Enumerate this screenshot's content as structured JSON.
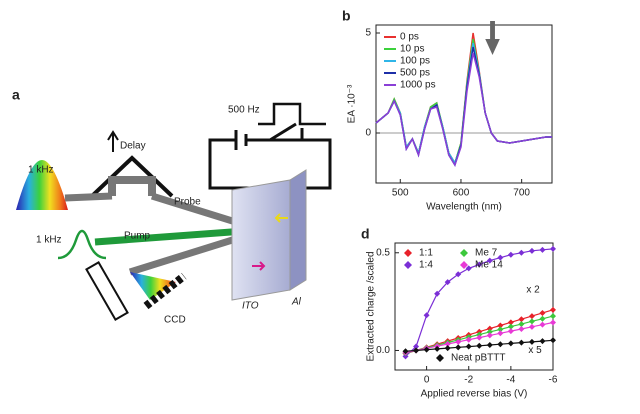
{
  "diagram": {
    "label": "a",
    "labels": [
      "500 Hz",
      "Delay",
      "1 kHz",
      "Probe",
      "1 kHz",
      "Pump",
      "CCD",
      "ITO",
      "Al"
    ]
  },
  "chart_data": [
    {
      "type": "line",
      "label": "b",
      "xlabel": "Wavelength (nm)",
      "ylabel": "EA ·10⁻³",
      "x": [
        460,
        480,
        490,
        500,
        510,
        520,
        530,
        540,
        550,
        560,
        570,
        580,
        590,
        600,
        610,
        620,
        630,
        640,
        650,
        660,
        680,
        700,
        720,
        740,
        750
      ],
      "series": [
        {
          "name": "0 ps",
          "color": "#e8312f",
          "values": [
            0.5,
            1.0,
            1.7,
            1.0,
            -0.7,
            -0.3,
            -1.0,
            0.3,
            1.3,
            1.5,
            0.3,
            -1.0,
            -1.5,
            -0.5,
            2.6,
            5.0,
            3.1,
            1.0,
            0.0,
            -0.4,
            -0.5,
            -0.4,
            -0.3,
            -0.2,
            -0.2
          ]
        },
        {
          "name": "10 ps",
          "color": "#3cd13c",
          "values": [
            0.5,
            1.0,
            1.7,
            1.0,
            -0.7,
            -0.3,
            -1.0,
            0.3,
            1.3,
            1.5,
            0.3,
            -1.0,
            -1.5,
            -0.5,
            2.5,
            4.7,
            3.0,
            1.0,
            0.0,
            -0.4,
            -0.5,
            -0.4,
            -0.3,
            -0.2,
            -0.2
          ]
        },
        {
          "name": "100 ps",
          "color": "#2fb5e8",
          "values": [
            0.5,
            1.0,
            1.6,
            1.0,
            -0.7,
            -0.3,
            -1.0,
            0.3,
            1.2,
            1.4,
            0.3,
            -1.0,
            -1.5,
            -0.6,
            2.4,
            4.5,
            3.0,
            1.0,
            0.0,
            -0.4,
            -0.5,
            -0.4,
            -0.3,
            -0.2,
            -0.2
          ]
        },
        {
          "name": "500 ps",
          "color": "#1d2fa8",
          "values": [
            0.5,
            1.0,
            1.6,
            0.9,
            -0.8,
            -0.3,
            -1.1,
            0.2,
            1.2,
            1.4,
            0.2,
            -1.1,
            -1.6,
            -0.6,
            2.3,
            4.3,
            2.9,
            1.0,
            0.0,
            -0.4,
            -0.5,
            -0.4,
            -0.3,
            -0.2,
            -0.2
          ]
        },
        {
          "name": "1000 ps",
          "color": "#8a3fd6",
          "values": [
            0.5,
            1.0,
            1.6,
            0.9,
            -0.8,
            -0.3,
            -1.1,
            0.2,
            1.2,
            1.3,
            0.2,
            -1.1,
            -1.6,
            -0.7,
            2.1,
            4.0,
            2.8,
            1.0,
            0.0,
            -0.4,
            -0.5,
            -0.4,
            -0.3,
            -0.2,
            -0.2
          ]
        }
      ],
      "xlim": [
        460,
        750
      ],
      "xticks": [
        500,
        600,
        700
      ],
      "ylim": [
        -2.5,
        5.4
      ],
      "yticks": [
        0,
        5
      ],
      "zero_line": true,
      "legend": "upper left"
    },
    {
      "type": "scatter",
      "label": "d",
      "xlabel": "Applied reverse bias (V)",
      "ylabel": "Extracted charge /scaled",
      "x": [
        1,
        0.5,
        0,
        -0.5,
        -1,
        -1.5,
        -2,
        -2.5,
        -3,
        -3.5,
        -4,
        -4.5,
        -5,
        -5.5,
        -6
      ],
      "series": [
        {
          "name": "1:1",
          "color": "#e8212a",
          "values": [
            -0.016,
            0,
            0.016,
            0.032,
            0.048,
            0.064,
            0.08,
            0.096,
            0.112,
            0.128,
            0.144,
            0.16,
            0.176,
            0.192,
            0.208
          ]
        },
        {
          "name": "1:4",
          "color": "#7b2fd6",
          "values": [
            -0.03,
            0.02,
            0.18,
            0.29,
            0.35,
            0.39,
            0.42,
            0.44,
            0.46,
            0.475,
            0.49,
            0.5,
            0.51,
            0.515,
            0.52
          ]
        },
        {
          "name": "Me 7",
          "color": "#3cc83c",
          "values": [
            -0.014,
            0,
            0.014,
            0.027,
            0.041,
            0.054,
            0.068,
            0.081,
            0.095,
            0.108,
            0.122,
            0.135,
            0.149,
            0.162,
            0.176
          ]
        },
        {
          "name": "Me 14",
          "color": "#e83ad6",
          "values": [
            -0.011,
            0,
            0.011,
            0.022,
            0.033,
            0.044,
            0.055,
            0.066,
            0.077,
            0.088,
            0.099,
            0.11,
            0.121,
            0.132,
            0.143
          ]
        },
        {
          "name": "Neat pBTTT",
          "color": "#111111",
          "values": [
            -0.004,
            0,
            0.004,
            0.008,
            0.012,
            0.016,
            0.02,
            0.024,
            0.028,
            0.032,
            0.036,
            0.04,
            0.044,
            0.048,
            0.052
          ]
        }
      ],
      "annotations": [
        "x 2",
        "x 5"
      ],
      "xlim": [
        1.5,
        -6
      ],
      "xticks": [
        0,
        -2,
        -4,
        -6
      ],
      "ylim": [
        -0.1,
        0.55
      ],
      "yticks": [
        {
          "value": 0,
          "label": "0.0"
        },
        0.5
      ],
      "legend": "upper left"
    }
  ]
}
